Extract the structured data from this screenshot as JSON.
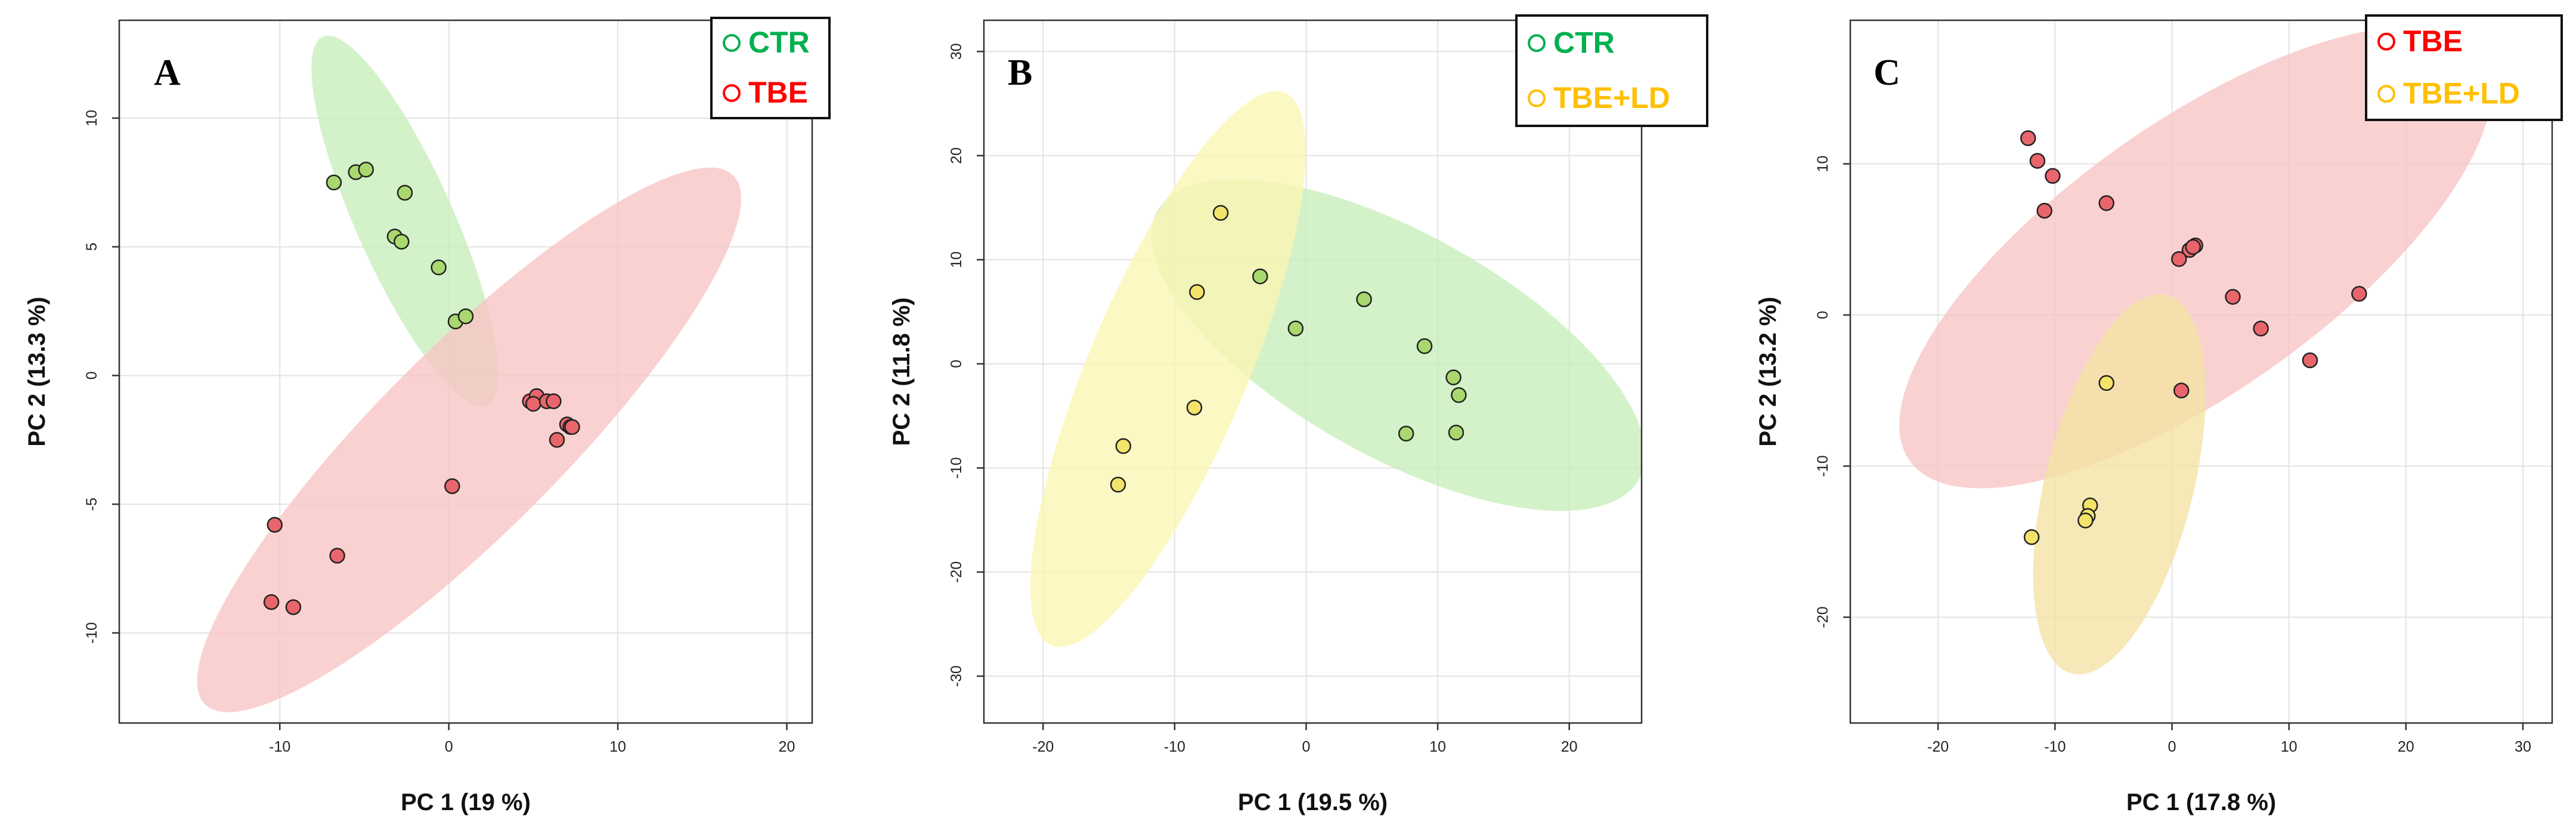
{
  "chart_data": [
    {
      "type": "scatter",
      "panel_label": "A",
      "xlabel": "PC 1 (19 %)",
      "ylabel": "PC 2 (13.3 %)",
      "xlim": [
        -19.5,
        21.5
      ],
      "ylim": [
        -13.5,
        13.8
      ],
      "xticks": [
        -10,
        0,
        10,
        20
      ],
      "yticks": [
        -10,
        -5,
        0,
        5,
        10
      ],
      "grid": true,
      "legend": {
        "placement": "top-right",
        "entries": [
          {
            "label": "CTR",
            "color": "#00b050"
          },
          {
            "label": "TBE",
            "color": "#ff0000"
          }
        ]
      },
      "series": [
        {
          "name": "CTR",
          "point_color": "#a9d86e",
          "ellipse_color": "#c8eebb",
          "ellipse": {
            "center": [
              -2.6,
              6.0
            ],
            "semi_axes": [
              8.7,
              2.6
            ],
            "angle_deg": -54
          },
          "points": [
            [
              -6.8,
              7.5
            ],
            [
              -5.5,
              7.9
            ],
            [
              -4.9,
              8.0
            ],
            [
              -2.6,
              7.1
            ],
            [
              -3.2,
              5.4
            ],
            [
              -2.8,
              5.2
            ],
            [
              -0.6,
              4.2
            ],
            [
              0.4,
              2.1
            ],
            [
              1.0,
              2.3
            ]
          ]
        },
        {
          "name": "TBE",
          "point_color": "#e8666b",
          "ellipse_color": "#f8c4c4",
          "ellipse": {
            "center": [
              1.2,
              -2.5
            ],
            "semi_axes": [
              18.8,
              4.2
            ],
            "angle_deg": 32
          },
          "points": [
            [
              -10.3,
              -5.8
            ],
            [
              -6.6,
              -7.0
            ],
            [
              -10.5,
              -8.8
            ],
            [
              -9.2,
              -9.0
            ],
            [
              0.2,
              -4.3
            ],
            [
              4.8,
              -1.0
            ],
            [
              5.2,
              -0.8
            ],
            [
              5.0,
              -1.1
            ],
            [
              5.8,
              -1.0
            ],
            [
              6.2,
              -1.0
            ],
            [
              7.0,
              -1.9
            ],
            [
              7.2,
              -2.0
            ],
            [
              7.3,
              -2.0
            ],
            [
              6.4,
              -2.5
            ]
          ]
        }
      ]
    },
    {
      "type": "scatter",
      "panel_label": "B",
      "xlabel": "PC 1 (19.5 %)",
      "ylabel": "PC 2 (11.8 %)",
      "xlim": [
        -24.5,
        25.5
      ],
      "ylim": [
        -34.5,
        33.0
      ],
      "xticks": [
        -20,
        -10,
        0,
        10,
        20
      ],
      "yticks": [
        -30,
        -20,
        -10,
        0,
        10,
        20,
        30
      ],
      "grid": true,
      "legend": {
        "placement": "top-right",
        "entries": [
          {
            "label": "CTR",
            "color": "#00b050"
          },
          {
            "label": "TBE+LD",
            "color": "#ffc000"
          }
        ]
      },
      "series": [
        {
          "name": "CTR",
          "point_color": "#a9d86e",
          "ellipse_color": "#c8eebb",
          "ellipse": {
            "center": [
              7.0,
              1.8
            ],
            "semi_axes": [
              22.5,
              10.0
            ],
            "angle_deg": -38
          },
          "points": [
            [
              -3.5,
              8.4
            ],
            [
              -0.8,
              3.4
            ],
            [
              4.4,
              6.2
            ],
            [
              9.0,
              1.7
            ],
            [
              11.2,
              -1.3
            ],
            [
              11.6,
              -3.0
            ],
            [
              7.6,
              -6.7
            ],
            [
              11.4,
              -6.6
            ]
          ]
        },
        {
          "name": "TBE+LD",
          "point_color": "#f3e36a",
          "ellipse_color": "#fbf6b4",
          "ellipse": {
            "center": [
              -10.5,
              -0.5
            ],
            "semi_axes": [
              28.0,
              6.2
            ],
            "angle_deg": 72
          },
          "points": [
            [
              -6.5,
              14.5
            ],
            [
              -8.3,
              6.9
            ],
            [
              -8.5,
              -4.2
            ],
            [
              -13.9,
              -7.9
            ],
            [
              -14.3,
              -11.6
            ]
          ]
        }
      ]
    },
    {
      "type": "scatter",
      "panel_label": "C",
      "xlabel": "PC 1 (17.8 %)",
      "ylabel": "PC 2 (13.2 %)",
      "xlim": [
        -27.5,
        32.5
      ],
      "ylim": [
        -27.0,
        19.5
      ],
      "xticks": [
        -20,
        -10,
        0,
        10,
        20,
        30
      ],
      "yticks": [
        -20,
        -10,
        0,
        10
      ],
      "grid": true,
      "legend": {
        "placement": "top-right",
        "entries": [
          {
            "label": "TBE",
            "color": "#ff0000"
          },
          {
            "label": "TBE+LD",
            "color": "#ffc000"
          }
        ]
      },
      "series": [
        {
          "name": "TBE",
          "point_color": "#e8666b",
          "ellipse_color": "#f8c4c4",
          "ellipse": {
            "center": [
              2.0,
              3.8
            ],
            "semi_axes": [
              28.0,
              9.5
            ],
            "angle_deg": 27
          },
          "points": [
            [
              -12.3,
              11.7
            ],
            [
              -11.5,
              10.2
            ],
            [
              -10.2,
              9.2
            ],
            [
              -10.9,
              6.9
            ],
            [
              -5.6,
              7.4
            ],
            [
              1.5,
              4.3
            ],
            [
              2.0,
              4.6
            ],
            [
              1.8,
              4.5
            ],
            [
              0.6,
              3.7
            ],
            [
              5.2,
              1.2
            ],
            [
              16.0,
              1.4
            ],
            [
              7.6,
              -0.9
            ],
            [
              11.8,
              -3.0
            ],
            [
              0.8,
              -5.0
            ]
          ]
        },
        {
          "name": "TBE+LD",
          "point_color": "#f3e36a",
          "ellipse_color": "#f4e3a3",
          "ellipse": {
            "center": [
              -4.5,
              -11.2
            ],
            "semi_axes": [
              13.2,
              6.2
            ],
            "angle_deg": 70
          },
          "points": [
            [
              -5.6,
              -4.5
            ],
            [
              -7.0,
              -12.6
            ],
            [
              -7.2,
              -13.3
            ],
            [
              -7.4,
              -13.6
            ],
            [
              -12.0,
              -14.7
            ]
          ]
        }
      ]
    }
  ]
}
